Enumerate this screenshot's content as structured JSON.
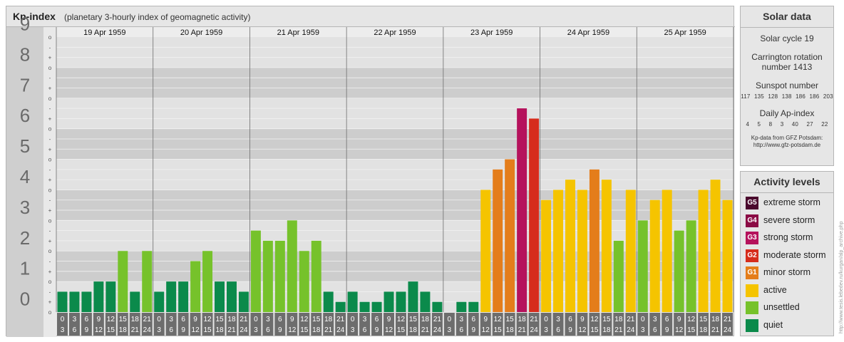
{
  "title": {
    "main": "Kp-index",
    "subtitle": "(planetary 3-hourly index of geomagnetic activity)"
  },
  "chart_data": {
    "type": "bar",
    "ylim": [
      0,
      9
    ],
    "y_ticks": [
      "0",
      "1",
      "2",
      "3",
      "4",
      "5",
      "6",
      "7",
      "8",
      "9"
    ],
    "sub_ticks": [
      "+",
      "-",
      "o"
    ],
    "days": [
      "19 Apr 1959",
      "20 Apr 1959",
      "21 Apr 1959",
      "22 Apr 1959",
      "23 Apr 1959",
      "24 Apr 1959",
      "25 Apr 1959"
    ],
    "interval_labels": [
      [
        "0",
        "3"
      ],
      [
        "3",
        "6"
      ],
      [
        "6",
        "9"
      ],
      [
        "9",
        "12"
      ],
      [
        "12",
        "15"
      ],
      [
        "15",
        "18"
      ],
      [
        "18",
        "21"
      ],
      [
        "21",
        "24"
      ]
    ],
    "values": [
      0.667,
      0.667,
      0.667,
      1.0,
      1.0,
      2.0,
      0.667,
      2.0,
      0.667,
      1.0,
      1.0,
      1.667,
      2.0,
      1.0,
      1.0,
      0.667,
      2.667,
      2.333,
      2.333,
      3.0,
      2.0,
      2.333,
      0.667,
      0.333,
      0.667,
      0.333,
      0.333,
      0.667,
      0.667,
      1.0,
      0.667,
      0.333,
      0.0,
      0.333,
      0.333,
      4.0,
      4.667,
      5.0,
      6.667,
      6.333,
      3.667,
      4.0,
      4.333,
      4.0,
      4.667,
      4.333,
      2.333,
      4.0,
      3.0,
      3.667,
      4.0,
      2.667,
      3.0,
      4.0,
      4.333,
      3.667
    ]
  },
  "levels": {
    "title": "Activity levels",
    "items": [
      {
        "code": "G5",
        "label": "extreme storm",
        "color": "#4b0a2e"
      },
      {
        "code": "G4",
        "label": "severe storm",
        "color": "#8b0c45"
      },
      {
        "code": "G3",
        "label": "strong storm",
        "color": "#b5125c"
      },
      {
        "code": "G2",
        "label": "moderate storm",
        "color": "#d62c1c"
      },
      {
        "code": "G1",
        "label": "minor storm",
        "color": "#e47d1b"
      },
      {
        "code": "",
        "label": "active",
        "color": "#f5c400"
      },
      {
        "code": "",
        "label": "unsettled",
        "color": "#76c22b"
      },
      {
        "code": "",
        "label": "quiet",
        "color": "#0b8a4b"
      }
    ]
  },
  "solar": {
    "title": "Solar data",
    "cycle": "Solar cycle 19",
    "carrington_line1": "Carrington rotation",
    "carrington_line2": "number 1413",
    "sunspot_title": "Sunspot number",
    "sunspot_values": "117 135 128 138 186 186 203",
    "ap_title": "Daily Ap-index",
    "ap_values": "4 5 8 3 40 27 22",
    "source_line1": "Kp-data from GFZ Potsdam:",
    "source_line2": "http://www.gfz-potsdam.de"
  },
  "credit": "http://www.tesis.lebedev.ru/kurgan/alp_archive.php"
}
